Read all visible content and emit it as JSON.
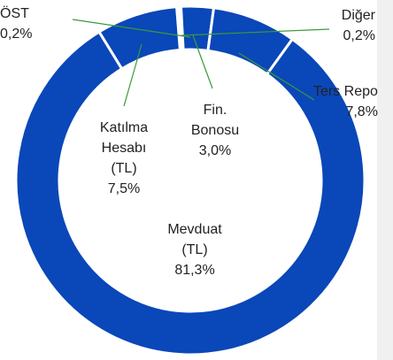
{
  "chart_data": {
    "type": "donut",
    "categories": [
      "Diğer",
      "ÖST",
      "Fin. Bonosu",
      "Ters Repo",
      "Mevduat (TL)",
      "Katılma Hesabı (TL)"
    ],
    "values": [
      0.2,
      0.2,
      3.0,
      7.8,
      81.3,
      7.5
    ],
    "value_labels": [
      "0,2%",
      "0,2%",
      "3,0%",
      "7,8%",
      "81,3%",
      "7,5%"
    ],
    "color": "#0a47b8"
  }
}
